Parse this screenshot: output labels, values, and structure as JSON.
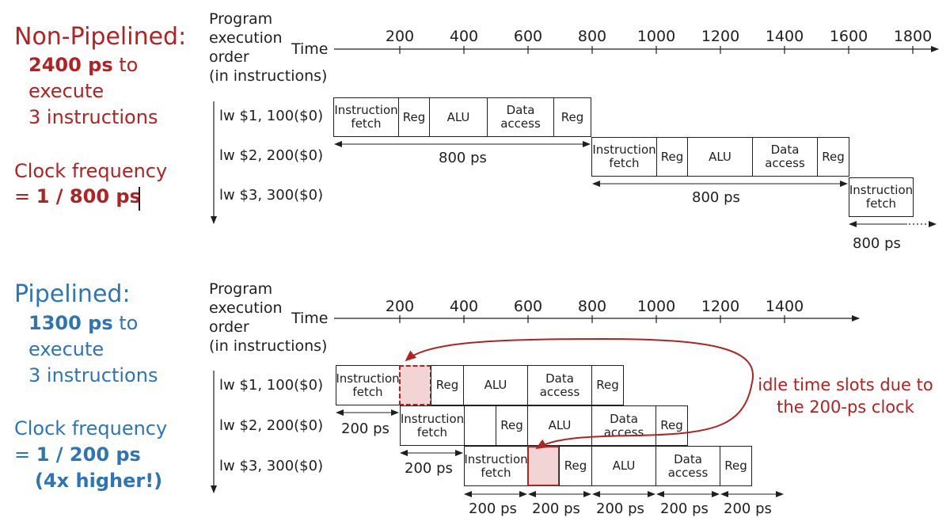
{
  "non_pipelined": {
    "heading": "Non-Pipelined:",
    "time_bold": "2400 ps",
    "time_rest": " to",
    "line2": "execute",
    "line3": "3 instructions",
    "clock_label": "Clock frequency",
    "clock_eq": "= ",
    "clock_value": "1 / 800 ps"
  },
  "pipelined": {
    "heading": "Pipelined:",
    "time_bold": "1300 ps",
    "time_rest": " to",
    "line2": "execute",
    "line3": "3 instructions",
    "clock_label": "Clock frequency",
    "clock_eq": "= ",
    "clock_value": "1 / 200 ps",
    "clock_note": "(4x higher!)"
  },
  "axis_titles": {
    "program_order": "Program\nexecution\norder\n(in instructions)",
    "time": "Time"
  },
  "top_ticks": [
    "200",
    "400",
    "600",
    "800",
    "1000",
    "1200",
    "1400",
    "1600",
    "1800"
  ],
  "bottom_ticks": [
    "200",
    "400",
    "600",
    "800",
    "1000",
    "1200",
    "1400"
  ],
  "instructions": [
    "lw  $1, 100($0)",
    "lw  $2, 200($0)",
    "lw  $3, 300($0)"
  ],
  "stages": {
    "fetch": "Instruction\nfetch",
    "reg": "Reg",
    "alu": "ALU",
    "data": "Data\naccess"
  },
  "spans": {
    "np_800": "800 ps",
    "p_200": "200 ps"
  },
  "idle_note": "idle time slots due to\nthe 200-ps clock",
  "colors": {
    "accent_red": "#b22222",
    "accent_blue": "#2e75b6",
    "idle_fill": "#f2d4d4"
  }
}
